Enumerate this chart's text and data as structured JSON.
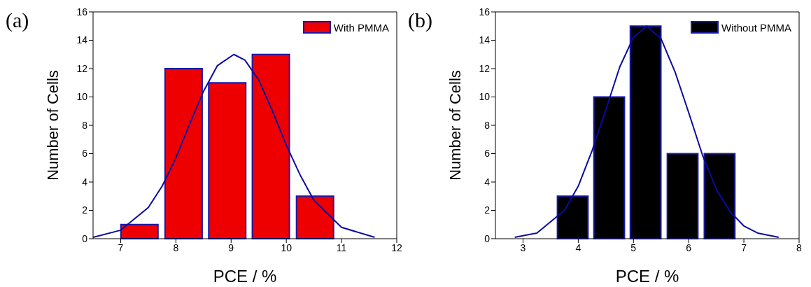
{
  "chart_data": [
    {
      "type": "bar",
      "title": "(a)",
      "xlabel": "PCE / %",
      "ylabel": "Number of Cells",
      "xlim": [
        6.5,
        12
      ],
      "xticks": [
        7,
        8,
        9,
        10,
        11,
        12
      ],
      "ylim": [
        0,
        16
      ],
      "yticks": [
        0,
        2,
        4,
        6,
        8,
        10,
        12,
        14,
        16
      ],
      "legend": "top right",
      "series": [
        {
          "name": "With PMMA",
          "color": "#ee0000",
          "x": [
            7.34,
            8.14,
            8.93,
            9.72,
            10.52
          ],
          "values": [
            1,
            12,
            11,
            13,
            3
          ]
        },
        {
          "type": "line",
          "color": "#0a0aa0",
          "x": [
            6.5,
            7.0,
            7.5,
            7.75,
            8.0,
            8.25,
            8.5,
            8.75,
            9.05,
            9.25,
            9.5,
            9.75,
            10.0,
            10.25,
            10.5,
            11.0,
            11.6
          ],
          "values": [
            0.1,
            0.6,
            2.2,
            3.7,
            5.7,
            8.1,
            10.4,
            12.2,
            13,
            12.6,
            11.2,
            9.0,
            6.6,
            4.5,
            2.7,
            0.8,
            0.1
          ]
        }
      ]
    },
    {
      "type": "bar",
      "title": "(b)",
      "xlabel": "PCE / %",
      "ylabel": "Number of Cells",
      "xlim": [
        2.5,
        8
      ],
      "xticks": [
        3,
        4,
        5,
        6,
        7,
        8
      ],
      "ylim": [
        0,
        16
      ],
      "yticks": [
        0,
        2,
        4,
        6,
        8,
        10,
        12,
        14,
        16
      ],
      "legend": "top right",
      "series": [
        {
          "name": "Without PMMA",
          "color": "#000000",
          "x": [
            3.9,
            4.56,
            5.22,
            5.89,
            6.56
          ],
          "values": [
            3,
            10,
            15,
            6,
            6
          ]
        },
        {
          "type": "line",
          "color": "#0a0aa0",
          "x": [
            2.85,
            3.25,
            3.75,
            4.0,
            4.25,
            4.5,
            4.75,
            5.0,
            5.24,
            5.5,
            5.75,
            6.0,
            6.25,
            6.5,
            6.75,
            7.0,
            7.25,
            7.63
          ],
          "values": [
            0.1,
            0.4,
            2.0,
            3.7,
            6.2,
            9.1,
            12.1,
            14.2,
            15,
            14.1,
            11.8,
            8.9,
            5.9,
            3.5,
            1.9,
            0.9,
            0.4,
            0.1
          ]
        }
      ]
    }
  ]
}
